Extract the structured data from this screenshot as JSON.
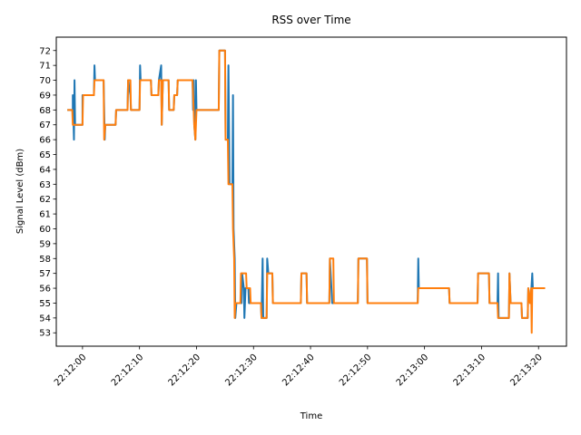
{
  "chart_data": {
    "type": "line",
    "title": "RSS over Time",
    "xlabel": "Time",
    "ylabel": "Signal Level (dBm)",
    "x_ticks": [
      "22:12:00",
      "22:12:10",
      "22:12:20",
      "22:12:30",
      "22:12:40",
      "22:12:50",
      "22:13:00",
      "22:13:10",
      "22:13:20"
    ],
    "y_ticks": [
      53,
      54,
      55,
      56,
      57,
      58,
      59,
      60,
      61,
      62,
      63,
      64,
      65,
      66,
      67,
      68,
      69,
      70,
      71,
      72
    ],
    "xlim": [
      "22:11:55.4",
      "22:13:24.9"
    ],
    "ylim": [
      52.1,
      72.9
    ],
    "grid": false,
    "legend": "none",
    "colors": [
      "#1f77b4",
      "#ff7f0e"
    ],
    "series": [
      {
        "color": "#1f77b4",
        "points": [
          [
            "22:11:57.5",
            68
          ],
          [
            "22:11:58.3",
            68
          ],
          [
            "22:11:58.3",
            69
          ],
          [
            "22:11:58.5",
            66
          ],
          [
            "22:11:58.6",
            70
          ],
          [
            "22:11:58.7",
            67
          ],
          [
            "22:12:00.0",
            67
          ],
          [
            "22:12:00.0",
            69
          ],
          [
            "22:12:02.0",
            69
          ],
          [
            "22:12:02.1",
            71
          ],
          [
            "22:12:02.2",
            70
          ],
          [
            "22:12:03.7",
            70
          ],
          [
            "22:12:03.8",
            68
          ],
          [
            "22:12:03.9",
            66
          ],
          [
            "22:12:04.0",
            67
          ],
          [
            "22:12:05.8",
            67
          ],
          [
            "22:12:05.9",
            68
          ],
          [
            "22:12:07.9",
            68
          ],
          [
            "22:12:08.0",
            70
          ],
          [
            "22:12:08.4",
            69
          ],
          [
            "22:12:08.5",
            68
          ],
          [
            "22:12:10.0",
            68
          ],
          [
            "22:12:10.1",
            71
          ],
          [
            "22:12:10.2",
            70
          ],
          [
            "22:12:12.0",
            70
          ],
          [
            "22:12:12.1",
            69
          ],
          [
            "22:12:13.3",
            69
          ],
          [
            "22:12:13.4",
            70
          ],
          [
            "22:12:13.8",
            71
          ],
          [
            "22:12:13.9",
            67
          ],
          [
            "22:12:14.1",
            70
          ],
          [
            "22:12:15.1",
            70
          ],
          [
            "22:12:15.2",
            68
          ],
          [
            "22:12:16.0",
            68
          ],
          [
            "22:12:16.1",
            69
          ],
          [
            "22:12:16.6",
            69
          ],
          [
            "22:12:16.7",
            70
          ],
          [
            "22:12:19.3",
            70
          ],
          [
            "22:12:19.4",
            68
          ],
          [
            "22:12:19.5",
            70
          ],
          [
            "22:12:19.6",
            67
          ],
          [
            "22:12:19.8",
            66
          ],
          [
            "22:12:19.9",
            70
          ],
          [
            "22:12:20.0",
            68
          ],
          [
            "22:12:23.9",
            68
          ],
          [
            "22:12:24.0",
            72
          ],
          [
            "22:12:25.0",
            72
          ],
          [
            "22:12:25.1",
            66
          ],
          [
            "22:12:25.5",
            66
          ],
          [
            "22:12:25.6",
            71
          ],
          [
            "22:12:25.8",
            63
          ],
          [
            "22:12:26.3",
            63
          ],
          [
            "22:12:26.4",
            69
          ],
          [
            "22:12:26.5",
            60
          ],
          [
            "22:12:26.7",
            58
          ],
          [
            "22:12:26.8",
            54
          ],
          [
            "22:12:27.0",
            55
          ],
          [
            "22:12:27.9",
            55
          ],
          [
            "22:12:28.0",
            57
          ],
          [
            "22:12:28.3",
            56
          ],
          [
            "22:12:28.4",
            54
          ],
          [
            "22:12:28.6",
            56
          ],
          [
            "22:12:29.1",
            56
          ],
          [
            "22:12:29.2",
            55
          ],
          [
            "22:12:31.3",
            55
          ],
          [
            "22:12:31.4",
            54
          ],
          [
            "22:12:31.6",
            58
          ],
          [
            "22:12:31.7",
            54
          ],
          [
            "22:12:32.3",
            54
          ],
          [
            "22:12:32.4",
            58
          ],
          [
            "22:12:32.6",
            57
          ],
          [
            "22:12:33.3",
            57
          ],
          [
            "22:12:33.4",
            55
          ],
          [
            "22:12:38.3",
            55
          ],
          [
            "22:12:38.4",
            57
          ],
          [
            "22:12:39.3",
            57
          ],
          [
            "22:12:39.4",
            55
          ],
          [
            "22:12:43.3",
            55
          ],
          [
            "22:12:43.4",
            58
          ],
          [
            "22:12:43.8",
            55
          ],
          [
            "22:12:48.3",
            55
          ],
          [
            "22:12:48.4",
            58
          ],
          [
            "22:12:49.9",
            58
          ],
          [
            "22:12:50.0",
            55
          ],
          [
            "22:12:58.8",
            55
          ],
          [
            "22:12:58.9",
            58
          ],
          [
            "22:12:59.0",
            56
          ],
          [
            "22:13:04.3",
            56
          ],
          [
            "22:13:04.4",
            55
          ],
          [
            "22:13:09.3",
            55
          ],
          [
            "22:13:09.4",
            57
          ],
          [
            "22:13:11.3",
            57
          ],
          [
            "22:13:11.4",
            55
          ],
          [
            "22:13:12.8",
            55
          ],
          [
            "22:13:12.9",
            57
          ],
          [
            "22:13:13.0",
            54
          ],
          [
            "22:13:14.8",
            54
          ],
          [
            "22:13:14.9",
            57
          ],
          [
            "22:13:15.1",
            55
          ],
          [
            "22:13:17.0",
            55
          ],
          [
            "22:13:17.1",
            54
          ],
          [
            "22:13:18.1",
            54
          ],
          [
            "22:13:18.2",
            56
          ],
          [
            "22:13:18.6",
            55
          ],
          [
            "22:13:18.9",
            57
          ],
          [
            "22:13:19.0",
            56
          ],
          [
            "22:13:21.0",
            56
          ]
        ]
      },
      {
        "color": "#ff7f0e",
        "points": [
          [
            "22:11:57.5",
            68
          ],
          [
            "22:11:58.2",
            68
          ],
          [
            "22:11:58.3",
            67
          ],
          [
            "22:12:00.0",
            67
          ],
          [
            "22:12:00.1",
            69
          ],
          [
            "22:12:02.0",
            69
          ],
          [
            "22:12:02.1",
            70
          ],
          [
            "22:12:03.7",
            70
          ],
          [
            "22:12:03.8",
            66
          ],
          [
            "22:12:04.0",
            67
          ],
          [
            "22:12:05.8",
            67
          ],
          [
            "22:12:05.9",
            68
          ],
          [
            "22:12:07.9",
            68
          ],
          [
            "22:12:08.0",
            70
          ],
          [
            "22:12:08.4",
            70
          ],
          [
            "22:12:08.5",
            68
          ],
          [
            "22:12:10.0",
            68
          ],
          [
            "22:12:10.1",
            70
          ],
          [
            "22:12:12.0",
            70
          ],
          [
            "22:12:12.1",
            69
          ],
          [
            "22:12:13.3",
            69
          ],
          [
            "22:12:13.4",
            70
          ],
          [
            "22:12:13.8",
            70
          ],
          [
            "22:12:13.9",
            67
          ],
          [
            "22:12:14.1",
            70
          ],
          [
            "22:12:15.1",
            70
          ],
          [
            "22:12:15.2",
            68
          ],
          [
            "22:12:16.0",
            68
          ],
          [
            "22:12:16.1",
            69
          ],
          [
            "22:12:16.6",
            69
          ],
          [
            "22:12:16.7",
            70
          ],
          [
            "22:12:19.3",
            70
          ],
          [
            "22:12:19.4",
            69
          ],
          [
            "22:12:19.6",
            67
          ],
          [
            "22:12:19.8",
            66
          ],
          [
            "22:12:20.0",
            68
          ],
          [
            "22:12:23.9",
            68
          ],
          [
            "22:12:24.0",
            72
          ],
          [
            "22:12:25.0",
            72
          ],
          [
            "22:12:25.1",
            66
          ],
          [
            "22:12:25.5",
            66
          ],
          [
            "22:12:25.6",
            63
          ],
          [
            "22:12:26.3",
            63
          ],
          [
            "22:12:26.4",
            60
          ],
          [
            "22:12:26.6",
            58
          ],
          [
            "22:12:26.7",
            54
          ],
          [
            "22:12:26.8",
            55
          ],
          [
            "22:12:27.7",
            55
          ],
          [
            "22:12:27.8",
            57
          ],
          [
            "22:12:28.7",
            57
          ],
          [
            "22:12:28.8",
            56
          ],
          [
            "22:12:29.4",
            56
          ],
          [
            "22:12:29.5",
            55
          ],
          [
            "22:12:31.3",
            55
          ],
          [
            "22:12:31.4",
            54
          ],
          [
            "22:12:32.3",
            54
          ],
          [
            "22:12:32.4",
            57
          ],
          [
            "22:12:33.3",
            57
          ],
          [
            "22:12:33.4",
            55
          ],
          [
            "22:12:38.3",
            55
          ],
          [
            "22:12:38.4",
            57
          ],
          [
            "22:12:39.3",
            57
          ],
          [
            "22:12:39.4",
            55
          ],
          [
            "22:12:43.3",
            55
          ],
          [
            "22:12:43.4",
            58
          ],
          [
            "22:12:44.0",
            58
          ],
          [
            "22:12:44.1",
            55
          ],
          [
            "22:12:48.3",
            55
          ],
          [
            "22:12:48.4",
            58
          ],
          [
            "22:12:49.9",
            58
          ],
          [
            "22:12:50.0",
            55
          ],
          [
            "22:12:58.8",
            55
          ],
          [
            "22:12:58.9",
            56
          ],
          [
            "22:13:04.3",
            56
          ],
          [
            "22:13:04.4",
            55
          ],
          [
            "22:13:09.3",
            55
          ],
          [
            "22:13:09.4",
            57
          ],
          [
            "22:13:11.3",
            57
          ],
          [
            "22:13:11.4",
            55
          ],
          [
            "22:13:12.8",
            55
          ],
          [
            "22:13:12.9",
            54
          ],
          [
            "22:13:14.8",
            54
          ],
          [
            "22:13:14.9",
            57
          ],
          [
            "22:13:15.1",
            55
          ],
          [
            "22:13:17.0",
            55
          ],
          [
            "22:13:17.1",
            54
          ],
          [
            "22:13:18.1",
            54
          ],
          [
            "22:13:18.2",
            56
          ],
          [
            "22:13:18.5",
            55
          ],
          [
            "22:13:18.7",
            56
          ],
          [
            "22:13:18.8",
            53
          ],
          [
            "22:13:18.9",
            56
          ],
          [
            "22:13:21.0",
            56
          ]
        ]
      }
    ]
  }
}
